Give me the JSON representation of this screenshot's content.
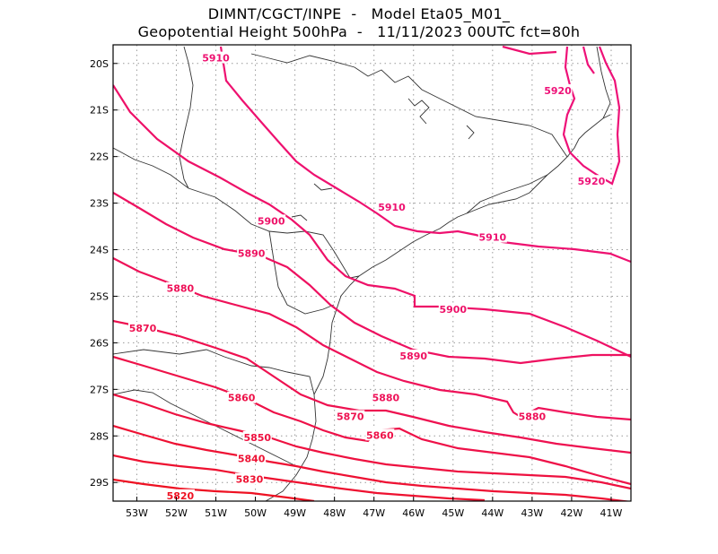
{
  "header": {
    "line1": "DIMNT/CGCT/INPE  -   Model Eta05_M01_",
    "line2": "Geopotential Height 500hPa  -   11/11/2023 00UTC fct=80h"
  },
  "axes": {
    "lat_labels": [
      "20S",
      "21S",
      "22S",
      "23S",
      "24S",
      "25S",
      "26S",
      "27S",
      "28S",
      "29S"
    ],
    "lon_labels": [
      "53W",
      "52W",
      "51W",
      "50W",
      "49W",
      "48W",
      "47W",
      "46W",
      "45W",
      "44W",
      "43W",
      "42W",
      "41W"
    ]
  },
  "chart_data": {
    "type": "contour",
    "variable": "Geopotential Height 500hPa",
    "lon_range": [
      -53.6,
      -40.5
    ],
    "lat_range": [
      -29.4,
      -19.6
    ],
    "grid": true,
    "contours": [
      {
        "value": "5820",
        "color": "#ee1122"
      },
      {
        "value": "5830",
        "color": "#ee1130"
      },
      {
        "value": "5840",
        "color": "#ee1133"
      },
      {
        "value": "5850",
        "color": "#ee1140"
      },
      {
        "value": "5860",
        "color": "#ee1148"
      },
      {
        "value": "5870",
        "color": "#ee1150"
      },
      {
        "value": "5880",
        "color": "#ee1158"
      },
      {
        "value": "5890",
        "color": "#ee1160"
      },
      {
        "value": "5900",
        "color": "#ee1168"
      },
      {
        "value": "5910",
        "color": "#ee1170"
      },
      {
        "value": "5920",
        "color": "#ee1178"
      }
    ],
    "labels": [
      {
        "text": "5910",
        "lon": -51.0,
        "lat": -19.9
      },
      {
        "text": "5920",
        "lon": -42.35,
        "lat": -20.6
      },
      {
        "text": "5920",
        "lon": -41.5,
        "lat": -22.55
      },
      {
        "text": "5910",
        "lon": -46.55,
        "lat": -23.1
      },
      {
        "text": "5910",
        "lon": -44.0,
        "lat": -23.75
      },
      {
        "text": "5900",
        "lon": -49.6,
        "lat": -23.4
      },
      {
        "text": "5890",
        "lon": -50.1,
        "lat": -24.1
      },
      {
        "text": "5900",
        "lon": -45.0,
        "lat": -25.3
      },
      {
        "text": "5890",
        "lon": -46.0,
        "lat": -26.3
      },
      {
        "text": "5880",
        "lon": -51.9,
        "lat": -24.85
      },
      {
        "text": "5880",
        "lon": -46.7,
        "lat": -27.2
      },
      {
        "text": "5880",
        "lon": -43.0,
        "lat": -27.6
      },
      {
        "text": "5870",
        "lon": -52.85,
        "lat": -25.7
      },
      {
        "text": "5870",
        "lon": -47.6,
        "lat": -27.6
      },
      {
        "text": "5860",
        "lon": -50.35,
        "lat": -27.2
      },
      {
        "text": "5860",
        "lon": -46.85,
        "lat": -28.0
      },
      {
        "text": "5850",
        "lon": -49.95,
        "lat": -28.05
      },
      {
        "text": "5840",
        "lon": -50.1,
        "lat": -28.5
      },
      {
        "text": "5830",
        "lon": -50.15,
        "lat": -28.95
      },
      {
        "text": "5820",
        "lon": -51.9,
        "lat": -29.3
      }
    ]
  }
}
